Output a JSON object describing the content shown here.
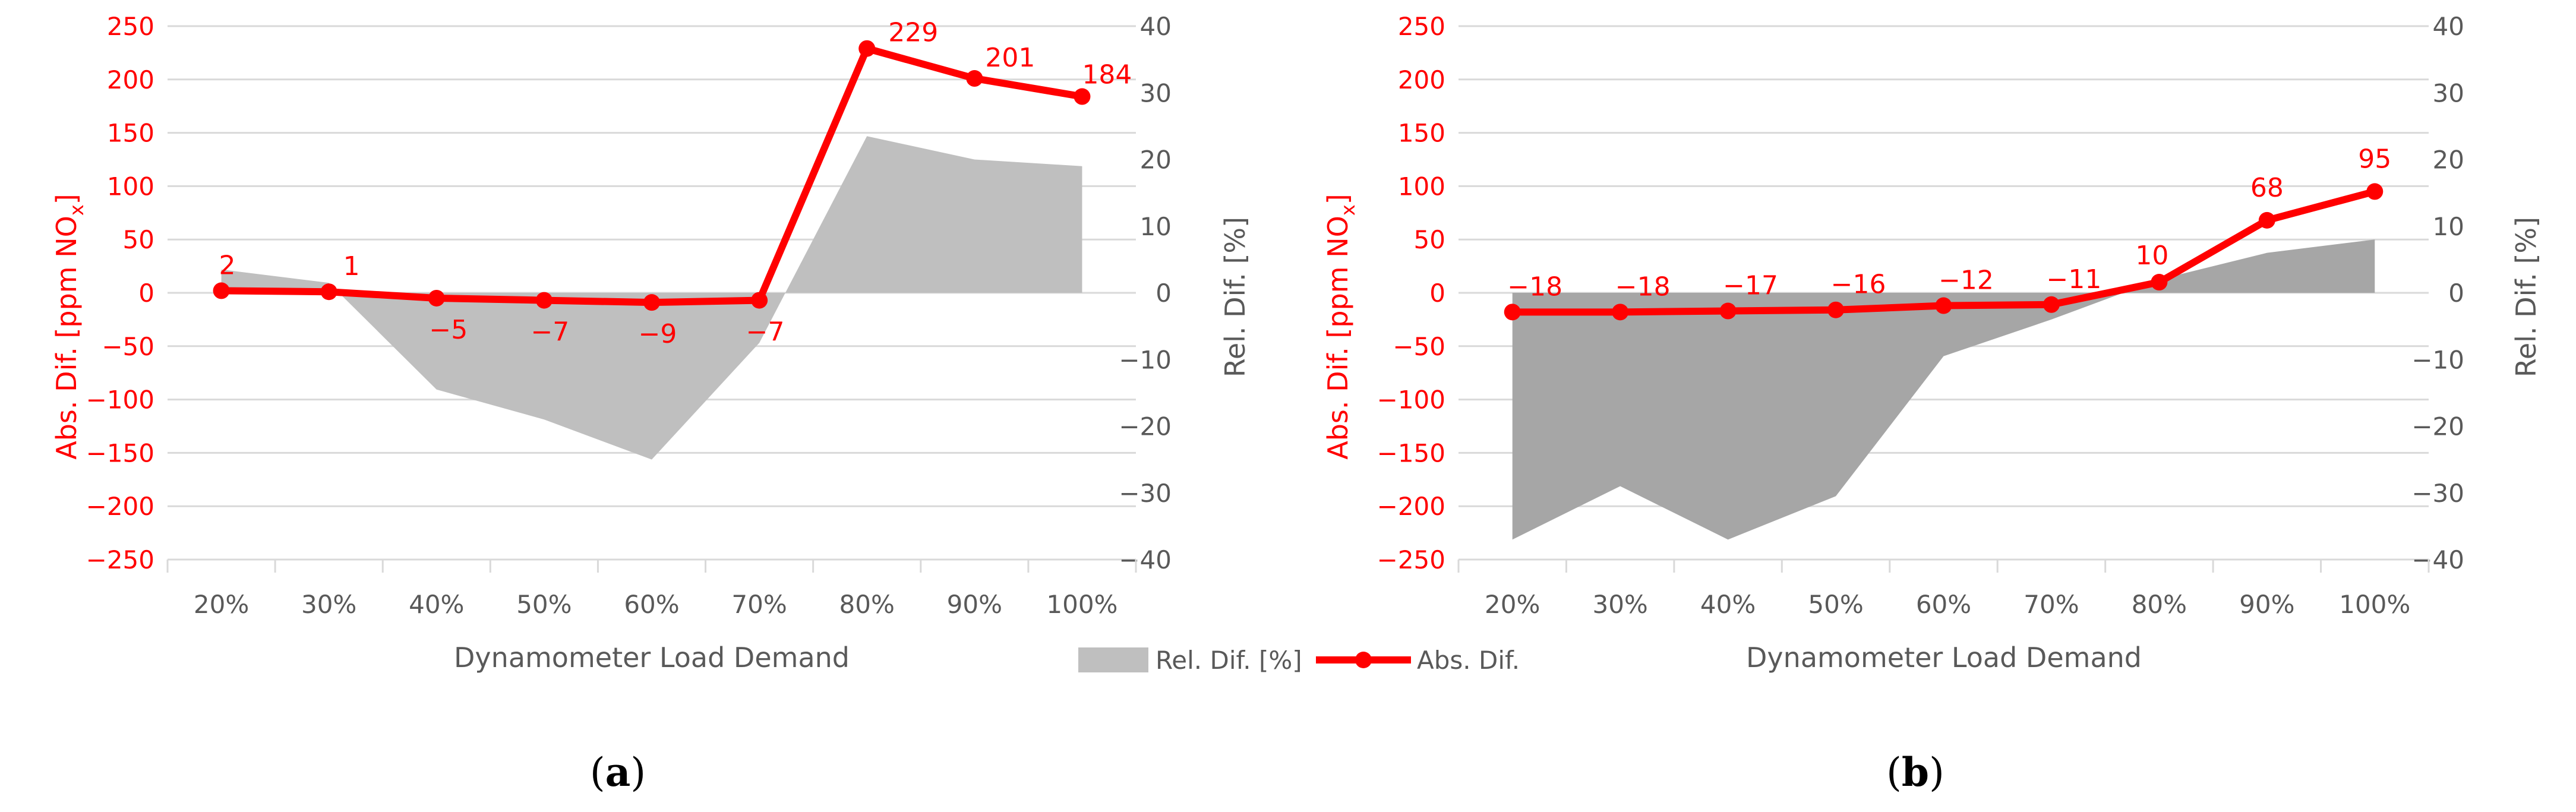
{
  "legend": {
    "rel_label": "Rel. Dif. [%]",
    "abs_label": "Abs. Dif."
  },
  "colors": {
    "abs_line": "#ff0000",
    "rel_fill_a": "#bfbfbf",
    "rel_fill_b": "#a6a6a6",
    "grid": "#d9d9d9"
  },
  "chart_data": [
    {
      "type": "line",
      "sub_label_prefix": "(",
      "sub_label_letter": "a",
      "sub_label_suffix": ")",
      "xlabel": "Dynamometer Load Demand",
      "ylabel_left_main": "Abs. Dif. [ppm NO",
      "ylabel_left_sub": "x",
      "ylabel_left_end": "]",
      "ylabel_right": "Rel. Dif. [%]",
      "ylim_left": [
        -250,
        250
      ],
      "ylim_right": [
        -40,
        40
      ],
      "left_ticks": [
        250,
        200,
        150,
        100,
        50,
        0,
        -50,
        -100,
        -150,
        -200,
        -250
      ],
      "right_ticks": [
        40,
        30,
        20,
        10,
        0,
        -10,
        -20,
        -30,
        -40
      ],
      "categories": [
        "20%",
        "30%",
        "40%",
        "50%",
        "60%",
        "70%",
        "80%",
        "90%",
        "100%"
      ],
      "grid": true,
      "series": [
        {
          "name": "Abs. Dif.",
          "type": "line",
          "axis": "left",
          "values": [
            2,
            1,
            -5,
            -7,
            -9,
            -7,
            229,
            201,
            184
          ],
          "labels": [
            "2",
            "1",
            "−5",
            "−7",
            "−9",
            "−7",
            "229",
            "201",
            "184"
          ]
        },
        {
          "name": "Rel. Dif. [%]",
          "type": "area",
          "axis": "right",
          "values": [
            3.5,
            1.5,
            -14.5,
            -19,
            -25,
            -7.5,
            23.5,
            20,
            19
          ]
        }
      ]
    },
    {
      "type": "line",
      "sub_label_prefix": "(",
      "sub_label_letter": "b",
      "sub_label_suffix": ")",
      "xlabel": "Dynamometer Load Demand",
      "ylabel_left_main": "Abs. Dif. [ppm NO",
      "ylabel_left_sub": "x",
      "ylabel_left_end": "]",
      "ylabel_right": "Rel. Dif. [%]",
      "ylim_left": [
        -250,
        250
      ],
      "ylim_right": [
        -40,
        40
      ],
      "left_ticks": [
        250,
        200,
        150,
        100,
        50,
        0,
        -50,
        -100,
        -150,
        -200,
        -250
      ],
      "right_ticks": [
        40,
        30,
        20,
        10,
        0,
        -10,
        -20,
        -30,
        -40
      ],
      "categories": [
        "20%",
        "30%",
        "40%",
        "50%",
        "60%",
        "70%",
        "80%",
        "90%",
        "100%"
      ],
      "grid": true,
      "series": [
        {
          "name": "Abs. Dif.",
          "type": "line",
          "axis": "left",
          "values": [
            -18,
            -18,
            -17,
            -16,
            -12,
            -11,
            10,
            68,
            95
          ],
          "labels": [
            "−18",
            "−18",
            "−17",
            "−16",
            "−12",
            "−11",
            "10",
            "68",
            "95"
          ]
        },
        {
          "name": "Rel. Dif. [%]",
          "type": "area",
          "axis": "right",
          "values": [
            -37,
            -29,
            -37,
            -30.5,
            -9.5,
            -4,
            2,
            6,
            8
          ]
        }
      ]
    }
  ]
}
